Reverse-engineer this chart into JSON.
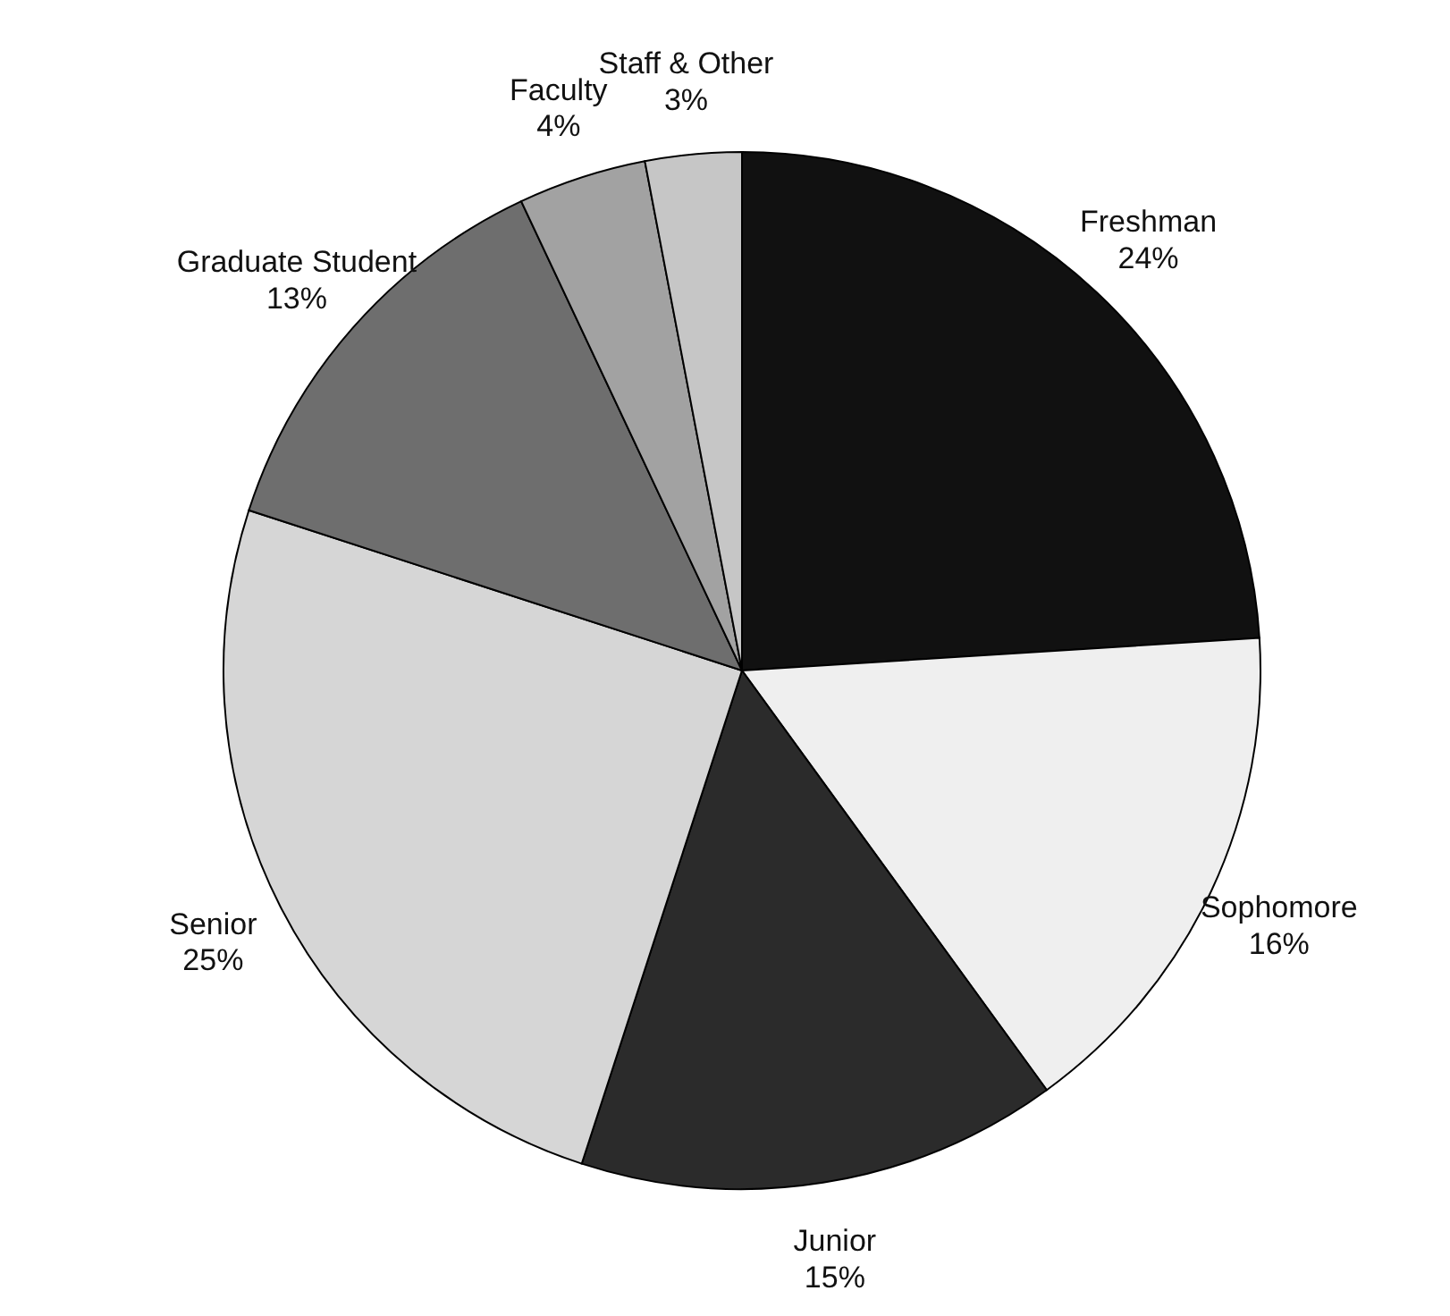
{
  "chart_data": {
    "type": "pie",
    "categories": [
      "Freshman",
      "Sophomore",
      "Junior",
      "Senior",
      "Graduate Student",
      "Faculty",
      "Staff & Other"
    ],
    "values": [
      24,
      16,
      15,
      25,
      13,
      4,
      3
    ],
    "value_labels": [
      "24%",
      "16%",
      "15%",
      "25%",
      "13%",
      "4%",
      "3%"
    ],
    "colors": [
      "#111111",
      "#efefef",
      "#2b2b2b",
      "#d6d6d6",
      "#6e6e6e",
      "#a2a2a2",
      "#c6c6c6"
    ]
  }
}
